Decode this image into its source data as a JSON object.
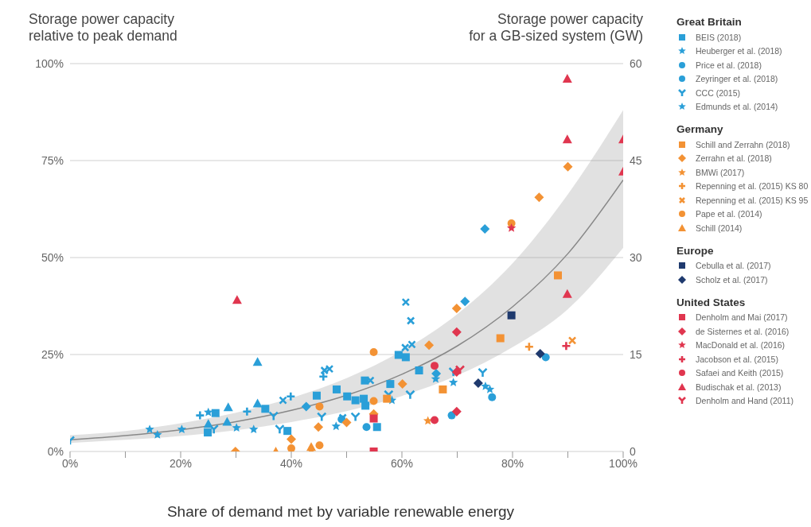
{
  "chart_data": {
    "type": "scatter",
    "ylabel": "Storage power capacity\nrelative to peak demand",
    "y2label": "Storage power capacity\nfor a GB-sized system (GW)",
    "xlabel": "Share of demand met by variable renewable energy",
    "xlim": [
      0,
      100
    ],
    "xticks": [
      {
        "value": 0,
        "label": "0%"
      },
      {
        "value": 10,
        "label": null
      },
      {
        "value": 20,
        "label": "20%"
      },
      {
        "value": 30,
        "label": null
      },
      {
        "value": 40,
        "label": "40%"
      },
      {
        "value": 50,
        "label": null
      },
      {
        "value": 60,
        "label": "60%"
      },
      {
        "value": 70,
        "label": null
      },
      {
        "value": 80,
        "label": "80%"
      },
      {
        "value": 90,
        "label": null
      },
      {
        "value": 100,
        "label": "100%"
      }
    ],
    "ylim": [
      0,
      100
    ],
    "yticks": [
      {
        "value": 0,
        "label": "0%"
      },
      {
        "value": 25,
        "label": "25%"
      },
      {
        "value": 50,
        "label": "50%"
      },
      {
        "value": 75,
        "label": "75%"
      },
      {
        "value": 100,
        "label": "100%"
      }
    ],
    "y2lim": [
      0,
      60
    ],
    "y2ticks": [
      0,
      15,
      30,
      45,
      60
    ],
    "grid": "y",
    "legend": "right",
    "annotations": [
      "Great Britain",
      "Germany",
      "Europe",
      "United States"
    ],
    "series": [
      {
        "type": "line",
        "color": "#888888",
        "marker": "none",
        "line_style": "solid",
        "x": [
          0,
          10,
          20,
          30,
          40,
          50,
          60,
          70,
          80,
          90,
          100
        ],
        "values": [
          3.0,
          4.1,
          5.6,
          7.7,
          10.6,
          14.5,
          19.9,
          27.2,
          37.3,
          51.0,
          70.0
        ],
        "lower": [
          2.2,
          3.0,
          4.0,
          5.5,
          7.6,
          10.4,
          14.3,
          19.6,
          26.9,
          36.7,
          52.5
        ],
        "upper": [
          4.2,
          5.3,
          7.3,
          10.0,
          13.8,
          18.9,
          25.9,
          35.4,
          48.5,
          66.3,
          88.0
        ]
      },
      {
        "name": "BEIS (2018)",
        "color": "#2a9fd8",
        "marker": "square",
        "x": [
          24.9,
          39.3,
          53.3,
          53.4,
          55.5
        ],
        "values": [
          4.9,
          5.3,
          18.3,
          11.8,
          6.3
        ]
      },
      {
        "color": "#2a9fd8",
        "marker": "diamond",
        "x": [
          42.7,
          66.2,
          71.4,
          75.0
        ],
        "values": [
          11.6,
          20.1,
          38.7,
          57.4
        ]
      },
      {
        "name": "Heuberger et al. (2018)",
        "color": "#2a9fd8",
        "marker": "star",
        "x": [
          25.0,
          48.1,
          58.2,
          66.1,
          69.3,
          75.1,
          75.9
        ],
        "values": [
          10.1,
          6.5,
          13.2,
          18.7,
          17.8,
          16.8,
          16.0
        ]
      },
      {
        "color": "#2a9fd8",
        "marker": "plus",
        "x": [
          23.5,
          32.0,
          39.9,
          45.8
        ],
        "values": [
          9.3,
          10.3,
          14.2,
          19.3
        ]
      },
      {
        "color": "#2a9fd8",
        "marker": "x",
        "x": [
          38.5,
          46.0,
          46.9,
          49.3,
          54.3,
          60.6,
          61.8,
          61.6,
          60.7
        ],
        "values": [
          13.2,
          20.9,
          21.3,
          8.7,
          18.3,
          26.8,
          27.6,
          33.7,
          38.5
        ]
      },
      {
        "color": "#2a9fd8",
        "marker": "square",
        "x": [
          35.3,
          48.2,
          50.1,
          51.6,
          53.1
        ],
        "values": [
          11.0,
          16.0,
          14.2,
          13.2,
          13.6
        ]
      },
      {
        "color": "#2a9fd8",
        "marker": "square",
        "x": [
          26.3,
          44.6,
          57.9,
          59.4,
          60.7,
          63.1
        ],
        "values": [
          9.9,
          14.4,
          17.4,
          24.9,
          24.3,
          20.9
        ]
      },
      {
        "name": "Price et al. (2018)",
        "color": "#2a9fd8",
        "marker": "circle",
        "x": [
          49.1,
          53.6,
          69.0,
          86.0
        ],
        "values": [
          8.3,
          6.3,
          9.3,
          24.3
        ]
      },
      {
        "name": "Zeyringer et al. (2018)",
        "color": "#2a9fd8",
        "marker": "circle",
        "x": [
          76.3
        ],
        "values": [
          14.0
        ]
      },
      {
        "color": "#2a9fd8",
        "marker": "triangle",
        "x": [
          25.0,
          28.4,
          28.6,
          33.9,
          33.9
        ],
        "values": [
          7.1,
          7.7,
          11.4,
          12.4,
          23.1
        ]
      },
      {
        "name": "CCC (2015)",
        "color": "#2a9fd8",
        "marker": "cross",
        "x": [
          0,
          26.0,
          36.8,
          37.9,
          45.5,
          51.6,
          57.6,
          61.5,
          69.3,
          74.6
        ],
        "values": [
          2.8,
          5.7,
          9.1,
          5.7,
          8.9,
          8.9,
          14.6,
          14.6,
          20.5,
          20.3
        ]
      },
      {
        "name": "Edmunds et al. (2014)",
        "color": "#2a9fd8",
        "marker": "star",
        "x": [
          14.4,
          15.8,
          20.2,
          30.1,
          33.2
        ],
        "values": [
          5.7,
          4.3,
          5.7,
          6.1,
          5.7
        ]
      },
      {
        "name": "Schill and Zerrahn (2018)",
        "color": "#f39234",
        "marker": "square",
        "x": [
          57.3,
          67.4,
          77.8,
          88.2
        ],
        "values": [
          13.6,
          16.0,
          29.2,
          45.4
        ]
      },
      {
        "name": "Zerrahn et al. (2018)",
        "color": "#f39234",
        "marker": "diamond",
        "x": [
          29.9,
          40.0,
          44.9,
          50.0,
          54.9,
          60.1,
          64.9,
          69.9,
          84.8,
          90.0
        ],
        "values": [
          0,
          3.2,
          6.3,
          7.5,
          9.7,
          17.4,
          27.4,
          36.9,
          65.5,
          73.4
        ]
      },
      {
        "name": "BMWi (2017)",
        "color": "#f39234",
        "marker": "star",
        "x": [
          64.7
        ],
        "values": [
          7.9
        ]
      },
      {
        "name": "Repenning et al. (2015) KS 80",
        "color": "#f39234",
        "marker": "plus",
        "x": [
          83.0
        ],
        "values": [
          27.0
        ]
      },
      {
        "name": "Repenning et al. (2015) KS 95",
        "color": "#f39234",
        "marker": "x",
        "x": [
          90.8
        ],
        "values": [
          28.6
        ]
      },
      {
        "name": "Pape et al. (2014)",
        "color": "#f39234",
        "marker": "circle",
        "x": [
          40.0,
          45.1,
          45.1,
          54.9,
          54.9,
          79.8
        ],
        "values": [
          0.8,
          1.6,
          11.6,
          13.0,
          25.6,
          58.8
        ]
      },
      {
        "name": "Schill (2014)",
        "color": "#f39234",
        "marker": "triangle",
        "x": [
          37.2,
          43.6,
          43.6
        ],
        "values": [
          0,
          0,
          1.2
        ]
      },
      {
        "name": "Cebulla et al. (2017)",
        "color": "#1f3a6e",
        "marker": "square",
        "x": [
          79.8
        ],
        "values": [
          35.1
        ]
      },
      {
        "name": "Scholz et al. (2017)",
        "color": "#1f3a6e",
        "marker": "diamond",
        "x": [
          73.8,
          85.0
        ],
        "values": [
          17.6,
          25.2
        ]
      },
      {
        "name": "Denholm and Mai (2017)",
        "color": "#e0364f",
        "marker": "square",
        "x": [
          54.9,
          54.9
        ],
        "values": [
          0,
          8.5
        ]
      },
      {
        "name": "de Sisternes et al. (2016)",
        "color": "#e0364f",
        "marker": "diamond",
        "x": [
          69.9,
          69.9,
          69.9
        ],
        "values": [
          10.3,
          20.5,
          30.8
        ]
      },
      {
        "name": "MacDonald et al. (2016)",
        "color": "#e0364f",
        "marker": "star",
        "x": [
          79.8
        ],
        "values": [
          57.6
        ]
      },
      {
        "name": "Jacobson et al. (2015)",
        "color": "#e0364f",
        "marker": "plus",
        "x": [
          89.7
        ],
        "values": [
          27.2
        ]
      },
      {
        "name": "Safaei and Keith (2015)",
        "color": "#e0364f",
        "marker": "circle",
        "x": [
          65.9,
          65.9
        ],
        "values": [
          8.1,
          22.1
        ]
      },
      {
        "name": "Budischak et al. (2013)",
        "color": "#e0364f",
        "marker": "triangle",
        "x": [
          30.2,
          89.9,
          89.9,
          89.9,
          100,
          100
        ],
        "values": [
          39.1,
          40.6,
          80.5,
          96.1,
          72.2,
          80.5
        ]
      },
      {
        "name": "Denholm and Hand (2011)",
        "color": "#e0364f",
        "marker": "cross",
        "x": [
          70.5
        ],
        "values": [
          21.0
        ]
      }
    ]
  }
}
